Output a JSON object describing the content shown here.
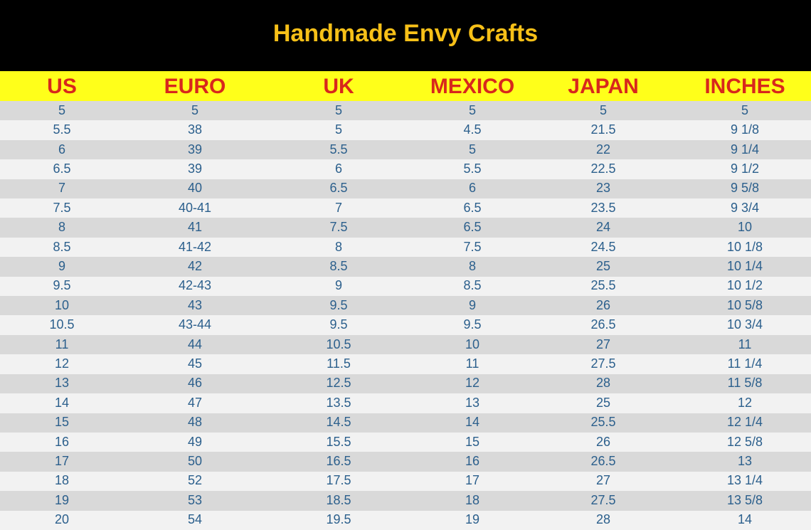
{
  "header": {
    "title": "Handmade Envy Crafts"
  },
  "table": {
    "columns": [
      "US",
      "EURO",
      "UK",
      "MEXICO",
      "JAPAN",
      "INCHES"
    ],
    "rows": [
      [
        "5",
        "5",
        "5",
        "5",
        "5",
        "5"
      ],
      [
        "5.5",
        "38",
        "5",
        "4.5",
        "21.5",
        "9 1/8"
      ],
      [
        "6",
        "39",
        "5.5",
        "5",
        "22",
        "9 1/4"
      ],
      [
        "6.5",
        "39",
        "6",
        "5.5",
        "22.5",
        "9 1/2"
      ],
      [
        "7",
        "40",
        "6.5",
        "6",
        "23",
        "9 5/8"
      ],
      [
        "7.5",
        "40-41",
        "7",
        "6.5",
        "23.5",
        "9 3/4"
      ],
      [
        "8",
        "41",
        "7.5",
        "6.5",
        "24",
        "10"
      ],
      [
        "8.5",
        "41-42",
        "8",
        "7.5",
        "24.5",
        "10 1/8"
      ],
      [
        "9",
        "42",
        "8.5",
        "8",
        "25",
        "10 1/4"
      ],
      [
        "9.5",
        "42-43",
        "9",
        "8.5",
        "25.5",
        "10 1/2"
      ],
      [
        "10",
        "43",
        "9.5",
        "9",
        "26",
        "10 5/8"
      ],
      [
        "10.5",
        "43-44",
        "9.5",
        "9.5",
        "26.5",
        "10 3/4"
      ],
      [
        "11",
        "44",
        "10.5",
        "10",
        "27",
        "11"
      ],
      [
        "12",
        "45",
        "11.5",
        "11",
        "27.5",
        "11 1/4"
      ],
      [
        "13",
        "46",
        "12.5",
        "12",
        "28",
        "11 5/8"
      ],
      [
        "14",
        "47",
        "13.5",
        "13",
        "25",
        "12"
      ],
      [
        "15",
        "48",
        "14.5",
        "14",
        "25.5",
        "12 1/4"
      ],
      [
        "16",
        "49",
        "15.5",
        "15",
        "26",
        "12 5/8"
      ],
      [
        "17",
        "50",
        "16.5",
        "16",
        "26.5",
        "13"
      ],
      [
        "18",
        "52",
        "17.5",
        "17",
        "27",
        "13 1/4"
      ],
      [
        "19",
        "53",
        "18.5",
        "18",
        "27.5",
        "13 5/8"
      ],
      [
        "20",
        "54",
        "19.5",
        "19",
        "28",
        "14"
      ]
    ]
  }
}
